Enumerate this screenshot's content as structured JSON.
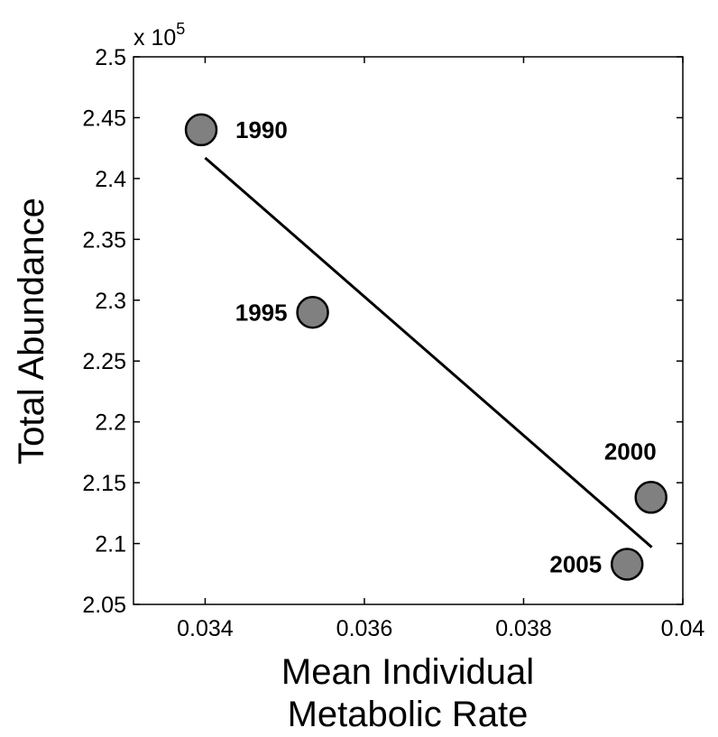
{
  "chart_data": {
    "type": "scatter",
    "xlabel_lines": [
      "Mean Individual",
      "Metabolic Rate"
    ],
    "ylabel": "Total Abundance",
    "y_multiplier": {
      "base": "x 10",
      "exponent": "5"
    },
    "xlim": [
      0.0331,
      0.04
    ],
    "ylim": [
      2.05,
      2.5
    ],
    "xticks": [
      0.034,
      0.036,
      0.038,
      0.04
    ],
    "xtick_labels": [
      "0.034",
      "0.036",
      "0.038",
      "0.04"
    ],
    "yticks": [
      2.05,
      2.1,
      2.15,
      2.2,
      2.25,
      2.3,
      2.35,
      2.4,
      2.45,
      2.5
    ],
    "ytick_labels": [
      "2.05",
      "2.1",
      "2.15",
      "2.2",
      "2.25",
      "2.3",
      "2.35",
      "2.4",
      "2.45",
      "2.5"
    ],
    "points": [
      {
        "label": "1990",
        "x": 0.03395,
        "y": 2.44
      },
      {
        "label": "1995",
        "x": 0.03535,
        "y": 2.29
      },
      {
        "label": "2000",
        "x": 0.0396,
        "y": 2.138
      },
      {
        "label": "2005",
        "x": 0.0393,
        "y": 2.083
      }
    ],
    "fit_line": [
      {
        "x": 0.034,
        "y": 2.417
      },
      {
        "x": 0.03961,
        "y": 2.097
      }
    ],
    "colors": {
      "marker_fill": "#808080",
      "marker_stroke": "#000000",
      "line": "#000000"
    }
  }
}
